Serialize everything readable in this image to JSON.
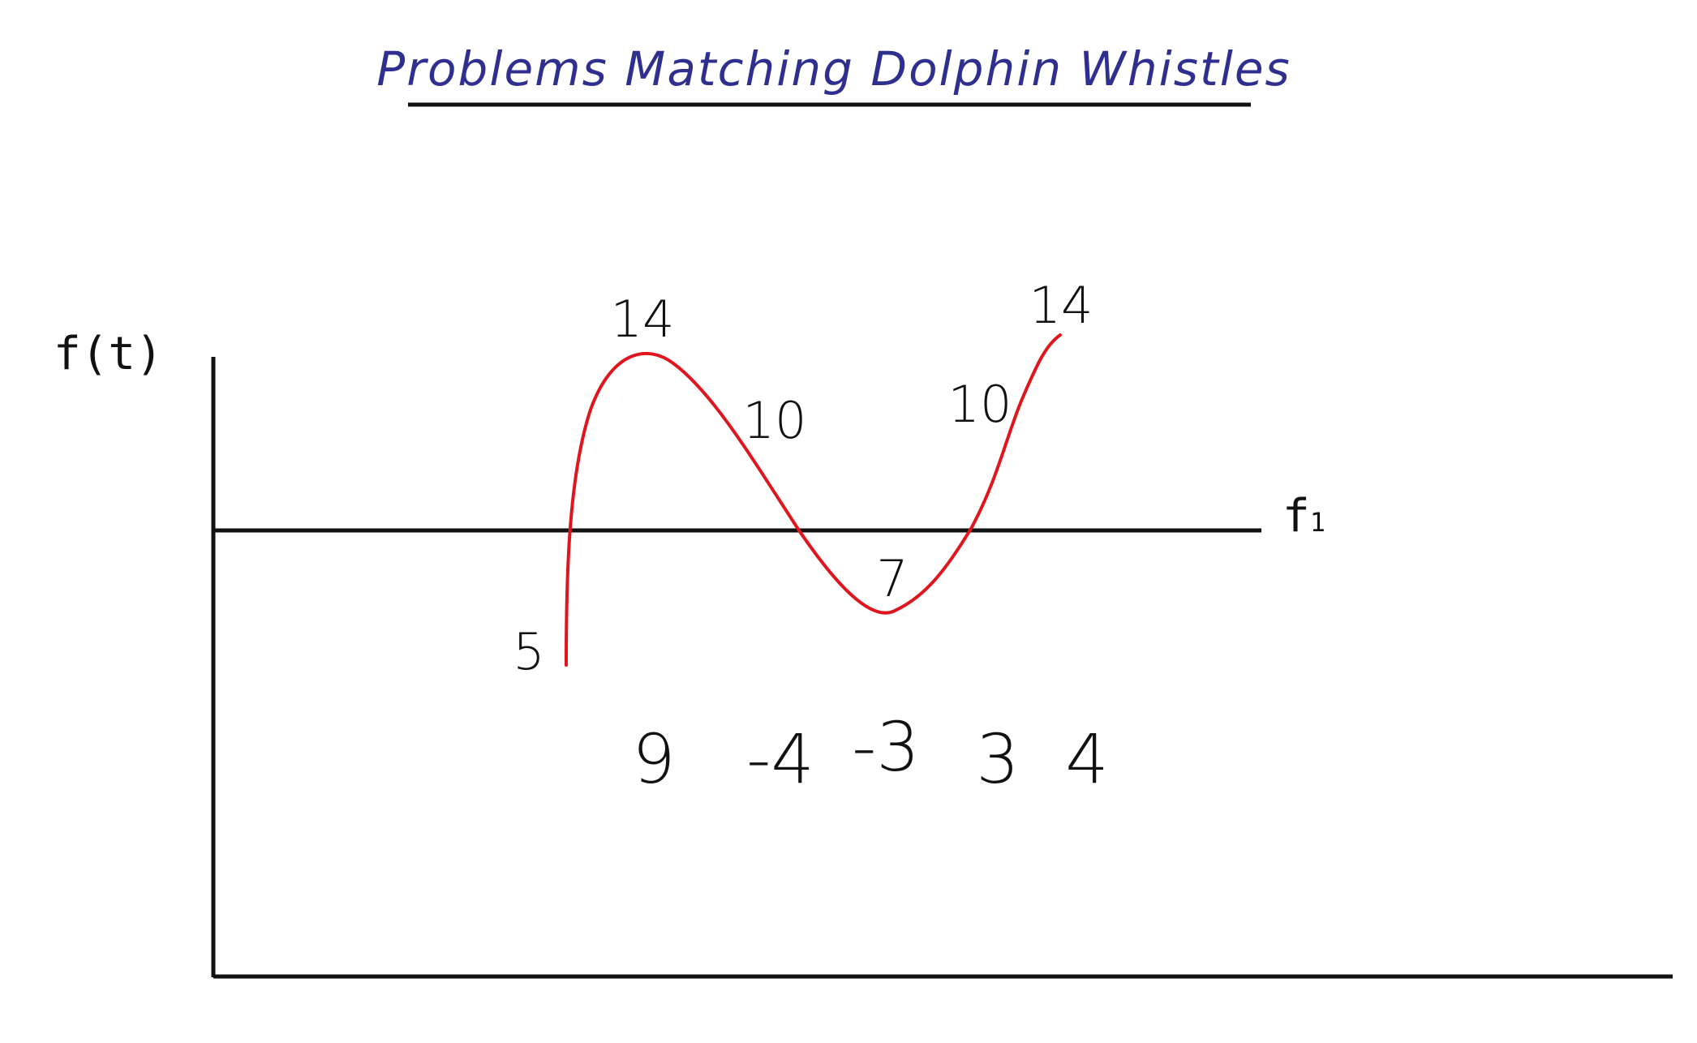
{
  "title": "Problems Matching Dolphin Whistles",
  "axes": {
    "y_label": "f(t)",
    "x_label_main": "f",
    "x_label_sub": "1"
  },
  "curve": {
    "color": "#e0161e",
    "point_labels": [
      "5",
      "14",
      "10",
      "7",
      "10",
      "14"
    ]
  },
  "bottom_numbers": [
    "9",
    "-4",
    "-3",
    "3",
    "4"
  ],
  "colors": {
    "title": "#2f2f8f",
    "axes": "#111111",
    "curve": "#e0161e"
  }
}
